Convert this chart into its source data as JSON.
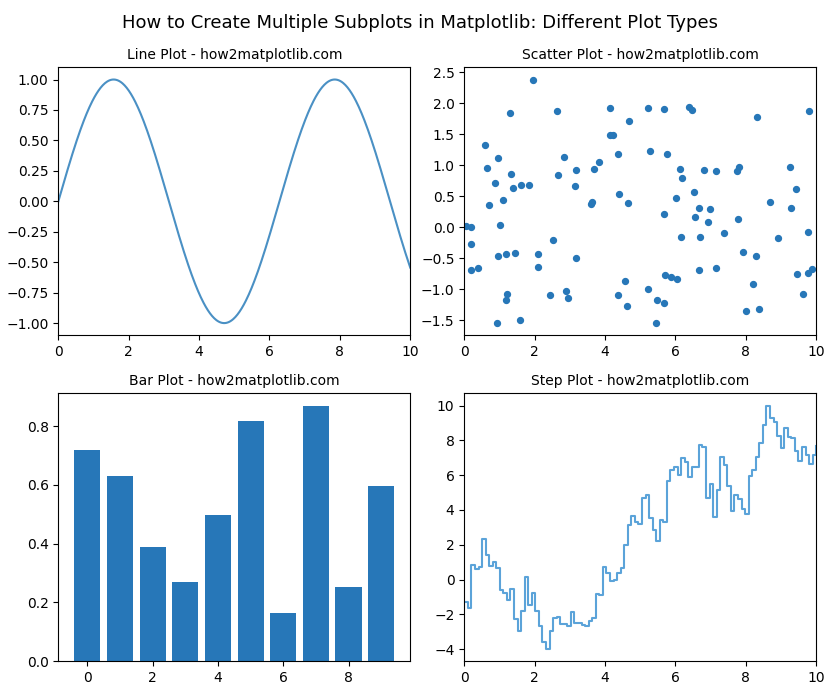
{
  "title": "How to Create Multiple Subplots in Matplotlib: Different Plot Types",
  "title_fontsize": 13,
  "subplot_titles": [
    "Line Plot - how2matplotlib.com",
    "Scatter Plot - how2matplotlib.com",
    "Bar Plot - how2matplotlib.com",
    "Step Plot - how2matplotlib.com"
  ],
  "subplot_title_fontsize": 10,
  "line_color": "#4a90c4",
  "scatter_color": "#2777b8",
  "bar_color": "#2777b8",
  "step_color": "#5ba3d9",
  "bar_values": [
    0.717,
    0.63,
    0.39,
    0.268,
    0.496,
    0.816,
    0.164,
    0.868,
    0.252,
    0.596
  ],
  "figsize": [
    8.4,
    7.0
  ],
  "dpi": 100
}
